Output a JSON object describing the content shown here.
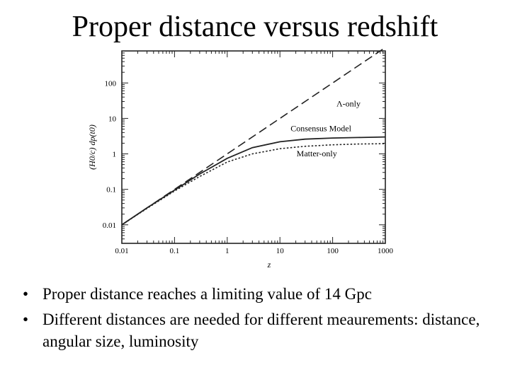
{
  "slide": {
    "title": "Proper distance versus redshift",
    "bullets": [
      {
        "marker": "•",
        "text": "Proper distance reaches a limiting value of 14 Gpc"
      },
      {
        "marker": "•",
        "text": "Different distances are needed for different meaurements: distance, angular size, luminosity"
      }
    ]
  },
  "chart_data": {
    "type": "line",
    "title": "",
    "xlabel": "z",
    "ylabel": "(H0/c) dp(t0)",
    "xscale": "log",
    "yscale": "log",
    "xlim": [
      0.01,
      1000
    ],
    "ylim": [
      0.003,
      800
    ],
    "xticks": [
      0.01,
      0.1,
      1,
      10,
      100,
      1000
    ],
    "xtick_labels": [
      "0.01",
      "0.1",
      "1",
      "10",
      "100",
      "1000"
    ],
    "yticks": [
      0.01,
      0.1,
      1,
      10,
      100
    ],
    "ytick_labels": [
      "0.01",
      "0.1",
      "1",
      "10",
      "100"
    ],
    "grid": false,
    "series": [
      {
        "name": "Λ-only",
        "style": "dashed",
        "x": [
          0.01,
          0.1,
          1,
          10,
          100,
          1000
        ],
        "y": [
          0.01,
          0.1,
          1,
          10,
          100,
          1000
        ]
      },
      {
        "name": "Consensus Model",
        "style": "solid",
        "x": [
          0.01,
          0.03,
          0.1,
          0.3,
          1,
          3,
          10,
          30,
          100,
          300,
          1000
        ],
        "y": [
          0.01,
          0.03,
          0.095,
          0.27,
          0.75,
          1.5,
          2.2,
          2.6,
          2.8,
          2.9,
          3.0
        ]
      },
      {
        "name": "Matter-only",
        "style": "dotted",
        "x": [
          0.01,
          0.03,
          0.1,
          0.3,
          1,
          3,
          10,
          30,
          100,
          300,
          1000
        ],
        "y": [
          0.01,
          0.029,
          0.09,
          0.23,
          0.59,
          1.0,
          1.4,
          1.64,
          1.8,
          1.9,
          1.94
        ]
      }
    ]
  }
}
